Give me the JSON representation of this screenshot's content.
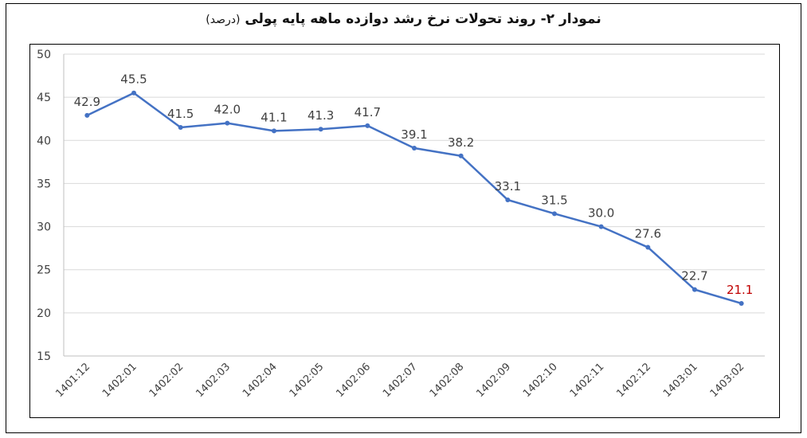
{
  "chart_data": {
    "type": "line",
    "title": "نمودار ۲- روند تحولات نرخ رشد دوازده ماهه پایه پولی",
    "title_unit": "(درصد)",
    "categories": [
      "1401:12",
      "1402:01",
      "1402:02",
      "1402:03",
      "1402:04",
      "1402:05",
      "1402:06",
      "1402:07",
      "1402:08",
      "1402:09",
      "1402:10",
      "1402:11",
      "1402:12",
      "1403:01",
      "1403:02"
    ],
    "series": [
      {
        "values": [
          42.9,
          45.5,
          41.5,
          42.0,
          41.1,
          41.3,
          41.7,
          39.1,
          38.2,
          33.1,
          31.5,
          30.0,
          27.6,
          22.7,
          21.1
        ]
      }
    ],
    "data_labels": [
      "42.9",
      "45.5",
      "41.5",
      "42.0",
      "41.1",
      "41.3",
      "41.7",
      "39.1",
      "38.2",
      "33.1",
      "31.5",
      "30.0",
      "27.6",
      "22.7",
      "21.1"
    ],
    "y_ticks": [
      15,
      20,
      25,
      30,
      35,
      40,
      45,
      50
    ],
    "ylim": [
      15,
      50
    ],
    "grid": true,
    "colors": {
      "line": "#4472C4",
      "label": "#404040",
      "highlight_label": "#C00000",
      "grid": "#D9D9D9"
    }
  }
}
